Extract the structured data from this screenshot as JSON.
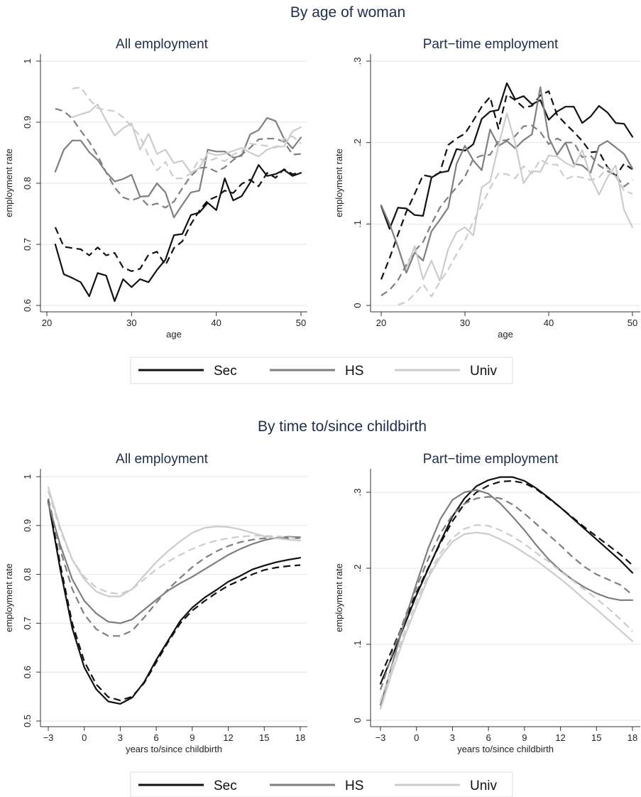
{
  "sections": [
    {
      "title": "By age of woman"
    },
    {
      "title": "By time to/since childbirth"
    }
  ],
  "legend": [
    {
      "label": "Sec",
      "color": "#111111"
    },
    {
      "label": "HS",
      "color": "#7f7f7f"
    },
    {
      "label": "Univ",
      "color": "#cccccc"
    }
  ],
  "chart_data": [
    {
      "type": "line",
      "title": "All employment",
      "xlabel": "age",
      "ylabel": "employment rate",
      "xlim": [
        20,
        50
      ],
      "ylim": [
        0.6,
        1.0
      ],
      "xticks": [
        20,
        30,
        40,
        50
      ],
      "xtick_labels": [
        "20",
        "30",
        "40",
        "50"
      ],
      "yticks": [
        0.6,
        0.7,
        0.8,
        0.9,
        1.0
      ],
      "ytick_labels": [
        "0.6",
        "0.7",
        "0.8",
        "0.9",
        "1"
      ],
      "grid": true,
      "x": [
        21,
        22,
        23,
        24,
        25,
        26,
        27,
        28,
        29,
        30,
        31,
        32,
        33,
        34,
        35,
        36,
        37,
        38,
        39,
        40,
        41,
        42,
        43,
        44,
        45,
        46,
        47,
        48,
        49,
        50
      ],
      "series": [
        {
          "name": "Sec",
          "dash": false,
          "color": "#111111",
          "values": [
            0.7,
            0.651,
            0.645,
            0.638,
            0.615,
            0.653,
            0.649,
            0.607,
            0.643,
            0.63,
            0.643,
            0.638,
            0.658,
            0.675,
            0.715,
            0.717,
            0.748,
            0.752,
            0.768,
            0.756,
            0.808,
            0.772,
            0.779,
            0.801,
            0.83,
            0.812,
            0.815,
            0.822,
            0.812,
            0.817
          ]
        },
        {
          "name": "Sec",
          "dash": true,
          "color": "#111111",
          "values": [
            0.728,
            0.696,
            0.694,
            0.692,
            0.682,
            0.695,
            0.682,
            0.686,
            0.662,
            0.656,
            0.66,
            0.683,
            0.688,
            0.666,
            0.694,
            0.705,
            0.733,
            0.755,
            0.772,
            0.778,
            0.788,
            0.784,
            0.799,
            0.806,
            0.795,
            0.817,
            0.809,
            0.823,
            0.815,
            0.817
          ]
        },
        {
          "name": "HS",
          "dash": false,
          "color": "#7f7f7f",
          "values": [
            0.819,
            0.855,
            0.87,
            0.87,
            0.851,
            0.838,
            0.818,
            0.803,
            0.807,
            0.814,
            0.778,
            0.779,
            0.8,
            0.785,
            0.744,
            0.765,
            0.785,
            0.788,
            0.855,
            0.852,
            0.852,
            0.842,
            0.845,
            0.88,
            0.887,
            0.907,
            0.902,
            0.873,
            0.857,
            0.875
          ]
        },
        {
          "name": "HS",
          "dash": true,
          "color": "#7f7f7f",
          "values": [
            0.922,
            0.918,
            0.906,
            0.886,
            0.868,
            0.845,
            0.818,
            0.793,
            0.777,
            0.772,
            0.777,
            0.763,
            0.767,
            0.76,
            0.77,
            0.792,
            0.812,
            0.825,
            0.826,
            0.819,
            0.826,
            0.838,
            0.847,
            0.858,
            0.872,
            0.873,
            0.873,
            0.868,
            0.847,
            0.848
          ]
        },
        {
          "name": "Univ",
          "dash": false,
          "color": "#cccccc",
          "values": [
            null,
            null,
            0.908,
            0.913,
            0.917,
            0.929,
            0.903,
            0.878,
            0.89,
            0.898,
            0.855,
            0.881,
            0.848,
            0.855,
            0.833,
            0.837,
            0.817,
            0.825,
            0.85,
            0.846,
            0.848,
            0.853,
            0.858,
            0.85,
            0.844,
            0.855,
            0.86,
            0.86,
            0.885,
            0.892
          ]
        },
        {
          "name": "Univ",
          "dash": true,
          "color": "#cccccc",
          "values": [
            null,
            null,
            0.955,
            0.957,
            0.938,
            0.923,
            0.92,
            0.918,
            0.908,
            0.893,
            0.877,
            0.845,
            0.821,
            0.835,
            0.808,
            0.808,
            0.816,
            0.84,
            0.836,
            0.841,
            0.836,
            0.847,
            0.853,
            0.865,
            0.863,
            0.861,
            0.858,
            0.873,
            0.877,
            0.865
          ]
        }
      ]
    },
    {
      "type": "line",
      "title": "Part−time employment",
      "xlabel": "age",
      "ylabel": "employment rate",
      "xlim": [
        20,
        50
      ],
      "ylim": [
        0,
        0.3
      ],
      "xticks": [
        20,
        30,
        40,
        50
      ],
      "xtick_labels": [
        "20",
        "30",
        "40",
        "50"
      ],
      "yticks": [
        0,
        0.1,
        0.2,
        0.3
      ],
      "ytick_labels": [
        "0",
        ".1",
        ".2",
        ".3"
      ],
      "grid": true,
      "x": [
        20,
        21,
        22,
        23,
        24,
        25,
        26,
        27,
        28,
        29,
        30,
        31,
        32,
        33,
        34,
        35,
        36,
        37,
        38,
        39,
        40,
        41,
        42,
        43,
        44,
        45,
        46,
        47,
        48,
        49,
        50
      ],
      "series": [
        {
          "name": "Sec",
          "dash": false,
          "color": "#111111",
          "values": [
            0.122,
            0.094,
            0.12,
            0.119,
            0.111,
            0.11,
            0.157,
            0.163,
            0.165,
            0.192,
            0.19,
            0.198,
            0.229,
            0.238,
            0.24,
            0.273,
            0.253,
            0.257,
            0.247,
            0.252,
            0.228,
            0.238,
            0.244,
            0.244,
            0.224,
            0.232,
            0.245,
            0.237,
            0.224,
            0.223,
            0.207
          ]
        },
        {
          "name": "Sec",
          "dash": true,
          "color": "#111111",
          "values": [
            0.032,
            0.058,
            0.087,
            0.115,
            0.137,
            0.16,
            0.158,
            0.163,
            0.197,
            0.205,
            0.211,
            0.227,
            0.244,
            0.256,
            0.217,
            0.259,
            0.252,
            0.243,
            0.245,
            0.258,
            0.263,
            0.234,
            0.223,
            0.213,
            0.202,
            0.188,
            0.189,
            0.17,
            0.159,
            0.174,
            0.167
          ]
        },
        {
          "name": "HS",
          "dash": false,
          "color": "#7f7f7f",
          "values": [
            0.123,
            0.1,
            0.072,
            0.04,
            0.065,
            0.055,
            0.091,
            0.105,
            0.12,
            0.174,
            0.196,
            0.178,
            0.166,
            0.216,
            0.196,
            0.202,
            0.193,
            0.203,
            0.21,
            0.268,
            0.206,
            0.185,
            0.2,
            0.174,
            0.172,
            0.163,
            0.196,
            0.202,
            0.194,
            0.186,
            0.168
          ]
        },
        {
          "name": "HS",
          "dash": true,
          "color": "#7f7f7f",
          "values": [
            0.012,
            0.019,
            0.031,
            0.05,
            0.067,
            0.078,
            0.1,
            0.12,
            0.133,
            0.145,
            0.158,
            0.18,
            0.184,
            0.185,
            0.202,
            0.203,
            0.208,
            0.22,
            0.221,
            0.213,
            0.198,
            0.205,
            0.2,
            0.2,
            0.182,
            0.184,
            0.172,
            0.165,
            0.16,
            0.146,
            0.154
          ]
        },
        {
          "name": "Univ",
          "dash": false,
          "color": "#cccccc",
          "values": [
            null,
            null,
            null,
            0.044,
            0.073,
            0.032,
            0.055,
            0.03,
            0.069,
            0.09,
            0.096,
            0.086,
            0.145,
            0.152,
            0.196,
            0.236,
            0.199,
            0.15,
            0.165,
            0.164,
            0.184,
            0.183,
            0.175,
            0.17,
            0.191,
            0.158,
            0.136,
            0.157,
            0.172,
            0.117,
            0.096
          ]
        },
        {
          "name": "Univ",
          "dash": true,
          "color": "#cccccc",
          "values": [
            null,
            null,
            0.001,
            0.004,
            0.014,
            0.026,
            0.011,
            0.029,
            0.044,
            0.063,
            0.08,
            0.103,
            0.123,
            0.144,
            0.162,
            0.161,
            0.156,
            0.171,
            0.162,
            0.179,
            0.173,
            0.173,
            0.155,
            0.159,
            0.157,
            0.154,
            0.157,
            0.169,
            0.158,
            0.141,
            0.137
          ]
        }
      ]
    },
    {
      "type": "line",
      "title": "All employment",
      "xlabel": "years to/since childbirth",
      "ylabel": "employment rate",
      "xlim": [
        -3,
        18
      ],
      "ylim": [
        0.5,
        1.0
      ],
      "xticks": [
        -3,
        0,
        3,
        6,
        9,
        12,
        15,
        18
      ],
      "xtick_labels": [
        "−3",
        "0",
        "3",
        "6",
        "9",
        "12",
        "15",
        "18"
      ],
      "yticks": [
        0.5,
        0.6,
        0.7,
        0.8,
        0.9,
        1.0
      ],
      "ytick_labels": [
        "0.5",
        "0.6",
        "0.7",
        "0.8",
        "0.9",
        "1"
      ],
      "grid": true,
      "x": [
        -3,
        -2,
        -1,
        0,
        1,
        2,
        3,
        4,
        5,
        6,
        7,
        8,
        9,
        10,
        11,
        12,
        13,
        14,
        15,
        16,
        17,
        18
      ],
      "series": [
        {
          "name": "Sec",
          "dash": false,
          "color": "#111111",
          "values": [
            0.95,
            0.81,
            0.69,
            0.61,
            0.565,
            0.54,
            0.535,
            0.548,
            0.58,
            0.625,
            0.665,
            0.705,
            0.732,
            0.752,
            0.768,
            0.785,
            0.797,
            0.81,
            0.818,
            0.825,
            0.83,
            0.834
          ]
        },
        {
          "name": "Sec",
          "dash": true,
          "color": "#111111",
          "values": [
            0.955,
            0.82,
            0.7,
            0.622,
            0.575,
            0.549,
            0.542,
            0.55,
            0.578,
            0.62,
            0.662,
            0.7,
            0.726,
            0.745,
            0.762,
            0.777,
            0.788,
            0.8,
            0.809,
            0.814,
            0.817,
            0.819
          ]
        },
        {
          "name": "HS",
          "dash": false,
          "color": "#7f7f7f",
          "values": [
            0.945,
            0.86,
            0.79,
            0.746,
            0.72,
            0.703,
            0.7,
            0.708,
            0.728,
            0.748,
            0.767,
            0.782,
            0.795,
            0.81,
            0.825,
            0.84,
            0.852,
            0.862,
            0.87,
            0.875,
            0.877,
            0.876
          ]
        },
        {
          "name": "HS",
          "dash": true,
          "color": "#7f7f7f",
          "values": [
            0.955,
            0.85,
            0.77,
            0.718,
            0.688,
            0.674,
            0.674,
            0.685,
            0.712,
            0.742,
            0.77,
            0.793,
            0.815,
            0.833,
            0.847,
            0.858,
            0.866,
            0.871,
            0.874,
            0.874,
            0.874,
            0.874
          ]
        },
        {
          "name": "Univ",
          "dash": false,
          "color": "#cccccc",
          "values": [
            0.978,
            0.895,
            0.83,
            0.79,
            0.765,
            0.755,
            0.755,
            0.77,
            0.798,
            0.825,
            0.848,
            0.868,
            0.885,
            0.895,
            0.898,
            0.897,
            0.892,
            0.885,
            0.878,
            0.874,
            0.871,
            0.869
          ]
        },
        {
          "name": "Univ",
          "dash": true,
          "color": "#cccccc",
          "values": [
            0.97,
            0.89,
            0.83,
            0.795,
            0.773,
            0.763,
            0.76,
            0.77,
            0.79,
            0.81,
            0.826,
            0.84,
            0.852,
            0.862,
            0.869,
            0.874,
            0.877,
            0.879,
            0.879,
            0.878,
            0.876,
            0.873
          ]
        }
      ]
    },
    {
      "type": "line",
      "title": "Part−time employment",
      "xlabel": "years to/since childbirth",
      "ylabel": "employment rate",
      "xlim": [
        -3,
        18
      ],
      "ylim": [
        0,
        0.33
      ],
      "xticks": [
        -3,
        0,
        3,
        6,
        9,
        12,
        15,
        18
      ],
      "xtick_labels": [
        "−3",
        "0",
        "3",
        "6",
        "9",
        "12",
        "15",
        "18"
      ],
      "yticks": [
        0,
        0.1,
        0.2,
        0.3
      ],
      "ytick_labels": [
        "0",
        ".1",
        ".2",
        ".3"
      ],
      "grid": true,
      "x": [
        -3,
        -2,
        -1,
        0,
        1,
        2,
        3,
        4,
        5,
        6,
        7,
        8,
        9,
        10,
        11,
        12,
        13,
        14,
        15,
        16,
        17,
        18
      ],
      "series": [
        {
          "name": "Sec",
          "dash": false,
          "color": "#111111",
          "values": [
            0.048,
            0.085,
            0.125,
            0.165,
            0.2,
            0.235,
            0.268,
            0.292,
            0.308,
            0.316,
            0.32,
            0.32,
            0.315,
            0.305,
            0.293,
            0.28,
            0.266,
            0.252,
            0.238,
            0.224,
            0.21,
            0.194
          ]
        },
        {
          "name": "Sec",
          "dash": true,
          "color": "#111111",
          "values": [
            0.058,
            0.094,
            0.131,
            0.168,
            0.201,
            0.233,
            0.262,
            0.285,
            0.3,
            0.309,
            0.314,
            0.315,
            0.312,
            0.304,
            0.292,
            0.28,
            0.267,
            0.254,
            0.242,
            0.23,
            0.218,
            0.204
          ]
        },
        {
          "name": "HS",
          "dash": false,
          "color": "#7f7f7f",
          "values": [
            0.02,
            0.075,
            0.13,
            0.18,
            0.227,
            0.265,
            0.29,
            0.3,
            0.303,
            0.298,
            0.285,
            0.268,
            0.25,
            0.23,
            0.212,
            0.197,
            0.185,
            0.175,
            0.167,
            0.161,
            0.158,
            0.158
          ]
        },
        {
          "name": "HS",
          "dash": true,
          "color": "#7f7f7f",
          "values": [
            0.04,
            0.088,
            0.134,
            0.175,
            0.213,
            0.246,
            0.27,
            0.285,
            0.292,
            0.294,
            0.292,
            0.284,
            0.272,
            0.258,
            0.244,
            0.23,
            0.215,
            0.202,
            0.192,
            0.185,
            0.178,
            0.165
          ]
        },
        {
          "name": "Univ",
          "dash": false,
          "color": "#cccccc",
          "values": [
            0.015,
            0.065,
            0.11,
            0.15,
            0.188,
            0.215,
            0.235,
            0.245,
            0.247,
            0.245,
            0.238,
            0.23,
            0.22,
            0.21,
            0.198,
            0.186,
            0.173,
            0.159,
            0.146,
            0.132,
            0.118,
            0.104
          ]
        },
        {
          "name": "Univ",
          "dash": true,
          "color": "#cccccc",
          "values": [
            0.025,
            0.072,
            0.116,
            0.157,
            0.192,
            0.22,
            0.24,
            0.252,
            0.257,
            0.256,
            0.25,
            0.242,
            0.232,
            0.22,
            0.209,
            0.196,
            0.184,
            0.172,
            0.16,
            0.147,
            0.133,
            0.117
          ]
        }
      ]
    }
  ]
}
